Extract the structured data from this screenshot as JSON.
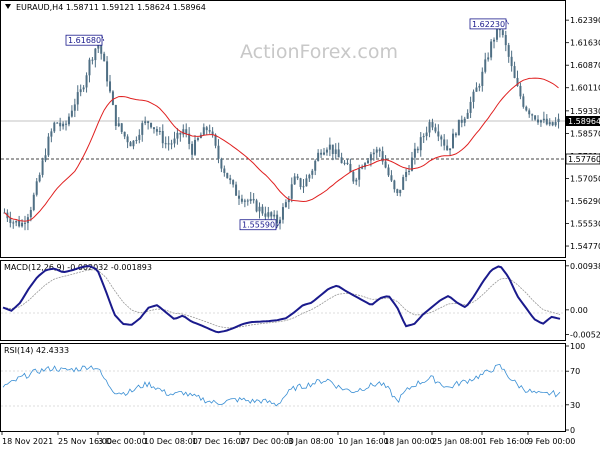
{
  "watermark": "ActionForex.com",
  "chart_data": [
    {
      "type": "candlestick",
      "header": "EURAUD,H4  1.58711 1.59121 1.58624 1.58964",
      "symbol": "EURAUD,H4",
      "ohlc": {
        "open": 1.58711,
        "high": 1.59121,
        "low": 1.58624,
        "close": 1.58964
      },
      "ylim": [
        1.544,
        1.628
      ],
      "y_ticks": [
        "1.62390",
        "1.61630",
        "1.60870",
        "1.60110",
        "1.59330",
        "1.58570",
        "1.57810",
        "1.57050",
        "1.56290",
        "1.55530",
        "1.54770"
      ],
      "current_price": "1.58964",
      "support_level": "1.57760",
      "annotations": [
        {
          "text": "1.61680",
          "value": 1.6168
        },
        {
          "text": "1.62230",
          "value": 1.6223
        },
        {
          "text": "1.55590",
          "value": 1.5559
        }
      ],
      "moving_average": "red",
      "colors": {
        "candles": "#4f6f84",
        "ma": "#e02020",
        "callout": "#1a1a8c"
      },
      "price_path": [
        1.559,
        1.556,
        1.555,
        1.56,
        1.57,
        1.582,
        1.59,
        1.587,
        1.595,
        1.6,
        1.61,
        1.6168,
        1.605,
        1.59,
        1.585,
        1.582,
        1.588,
        1.59,
        1.586,
        1.582,
        1.583,
        1.587,
        1.58,
        1.585,
        1.588,
        1.578,
        1.572,
        1.566,
        1.564,
        1.562,
        1.56,
        1.558,
        1.5559,
        1.562,
        1.57,
        1.568,
        1.573,
        1.58,
        1.582,
        1.578,
        1.575,
        1.57,
        1.576,
        1.579,
        1.58,
        1.572,
        1.564,
        1.572,
        1.578,
        1.584,
        1.59,
        1.586,
        1.58,
        1.587,
        1.592,
        1.598,
        1.605,
        1.615,
        1.6223,
        1.613,
        1.602,
        1.595,
        1.592,
        1.59,
        1.588,
        1.5896
      ]
    },
    {
      "type": "line",
      "header": "MACD(12,26,9) -0.002032 -0.001893",
      "name": "MACD(12,26,9)",
      "values_printed": [
        "-0.002032",
        "-0.001893"
      ],
      "ylim": [
        -0.006,
        0.0102
      ],
      "y_ticks": [
        "0.009384",
        "0.00",
        "-0.005252"
      ],
      "colors": {
        "macd": "#1a1a8c",
        "signal": "#999999"
      },
      "macd_path": [
        0.0005,
        -0.0002,
        0.0015,
        0.0045,
        0.007,
        0.0085,
        0.0088,
        0.008,
        0.0084,
        0.009,
        0.0094,
        0.0086,
        0.004,
        -0.001,
        -0.003,
        -0.0032,
        -0.0018,
        0.0005,
        0.001,
        -0.0005,
        -0.002,
        -0.0012,
        -0.0025,
        -0.0032,
        -0.004,
        -0.0048,
        -0.0045,
        -0.0038,
        -0.003,
        -0.0026,
        -0.0025,
        -0.0024,
        -0.0022,
        -0.0018,
        -0.0005,
        0.001,
        0.0015,
        0.003,
        0.0045,
        0.0052,
        0.004,
        0.003,
        0.002,
        0.001,
        0.0025,
        0.003,
        0.0005,
        -0.0035,
        -0.003,
        -0.001,
        0.0005,
        0.002,
        0.003,
        0.0015,
        0.0005,
        0.003,
        0.006,
        0.0085,
        0.0094,
        0.007,
        0.003,
        0.0005,
        -0.002,
        -0.003,
        -0.0015,
        -0.0019
      ]
    },
    {
      "type": "line",
      "header": "RSI(14) 42.4333",
      "name": "RSI(14)",
      "value_printed": "42.4333",
      "ylim": [
        0,
        100
      ],
      "y_ticks": [
        "100",
        "70",
        "30",
        "0"
      ],
      "colors": {
        "rsi": "#3a8fd4"
      },
      "rsi_path": [
        52,
        56,
        62,
        66,
        70,
        72,
        74,
        71,
        72,
        73,
        76,
        74,
        58,
        46,
        44,
        46,
        52,
        55,
        50,
        44,
        42,
        45,
        40,
        38,
        34,
        32,
        34,
        36,
        36,
        34,
        35,
        33,
        30,
        42,
        50,
        52,
        55,
        58,
        60,
        52,
        48,
        46,
        50,
        53,
        56,
        48,
        34,
        46,
        54,
        58,
        62,
        56,
        50,
        55,
        58,
        62,
        66,
        72,
        76,
        64,
        54,
        48,
        44,
        42,
        44,
        42
      ]
    }
  ],
  "x_labels": [
    "18 Nov 2021",
    "25 Nov 16:00",
    "3 Dec 00:00",
    "10 Dec 08:00",
    "17 Dec 16:00",
    "27 Dec 00:00",
    "3 Jan 08:00",
    "10 Jan 16:00",
    "18 Jan 00:00",
    "25 Jan 08:00",
    "1 Feb 16:00",
    "9 Feb 00:00"
  ]
}
